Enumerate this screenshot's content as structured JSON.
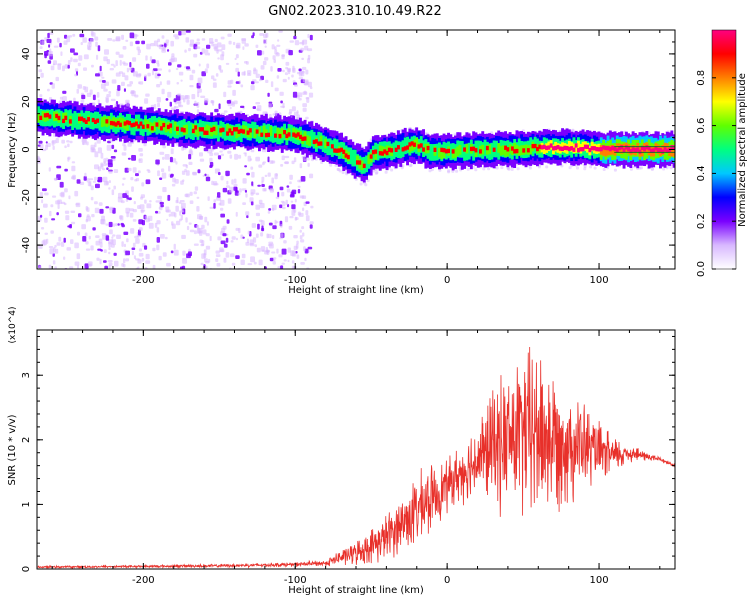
{
  "figure_title": "GN02.2023.310.10.49.R22",
  "colorbar": {
    "label": "Normalized spectral amplitude",
    "ticks": [
      "0.0",
      "0.2",
      "0.4",
      "0.6",
      "0.8"
    ],
    "tick_values": [
      0.0,
      0.2,
      0.4,
      0.6,
      0.8
    ],
    "range": [
      0,
      1
    ],
    "colormap": [
      "#ffffff",
      "#d8b8ff",
      "#7a00ff",
      "#0000ff",
      "#00c8ff",
      "#00ff80",
      "#60ff00",
      "#ffff00",
      "#ff8000",
      "#ff0000",
      "#ff0080"
    ]
  },
  "chart_data": [
    {
      "type": "heatmap",
      "title": "",
      "xlabel": "Height of straight line (km)",
      "ylabel": "Frequency (Hz)",
      "xlim": [
        -270,
        150
      ],
      "ylim": [
        -50,
        50
      ],
      "x_ticks": [
        -200,
        -100,
        0,
        100
      ],
      "y_ticks": [
        -40,
        -20,
        0,
        20,
        40
      ],
      "dominant_ridge": {
        "x": [
          -270,
          -240,
          -200,
          -160,
          -120,
          -100,
          -90,
          -80,
          -70,
          -60,
          -55,
          -50,
          -45,
          -40,
          -30,
          -20,
          -15,
          -10,
          0,
          20,
          40,
          60,
          80,
          100,
          120,
          150
        ],
        "frequency": [
          14,
          12,
          10,
          8,
          7,
          6,
          4,
          2,
          -1,
          -5,
          -7,
          -2,
          -1,
          -1,
          1,
          2,
          0,
          -1,
          -1,
          0,
          0,
          1,
          1,
          0,
          0,
          0
        ]
      },
      "noise_region_x": [
        -270,
        -100
      ]
    },
    {
      "type": "line",
      "title": "",
      "xlabel": "Height of straight line (km)",
      "ylabel": "SNR (10 * v/v)",
      "y_multiplier": "(x10^4)",
      "xlim": [
        -270,
        150
      ],
      "ylim": [
        0,
        37000
      ],
      "x_ticks": [
        -200,
        -100,
        0,
        100
      ],
      "y_ticks": [
        0,
        1,
        2,
        3
      ],
      "color": "#e8302a",
      "envelope": {
        "x": [
          -270,
          -200,
          -150,
          -100,
          -80,
          -70,
          -60,
          -50,
          -40,
          -30,
          -20,
          -10,
          0,
          10,
          20,
          30,
          40,
          50,
          60,
          70,
          80,
          90,
          100,
          110,
          120,
          130,
          140,
          150
        ],
        "mean": [
          300,
          400,
          500,
          700,
          900,
          1800,
          2500,
          3500,
          5000,
          7000,
          9000,
          11000,
          13000,
          15000,
          17000,
          19000,
          20000,
          21000,
          21000,
          20000,
          19500,
          19000,
          18000,
          17500,
          18000,
          17500,
          17000,
          16000
        ],
        "spread": [
          150,
          200,
          250,
          350,
          500,
          1200,
          1800,
          2600,
          3500,
          4500,
          5500,
          5000,
          4000,
          4500,
          6000,
          9000,
          11000,
          13000,
          14000,
          11000,
          9000,
          7000,
          4500,
          3000,
          1500,
          800,
          400,
          300
        ]
      }
    }
  ]
}
